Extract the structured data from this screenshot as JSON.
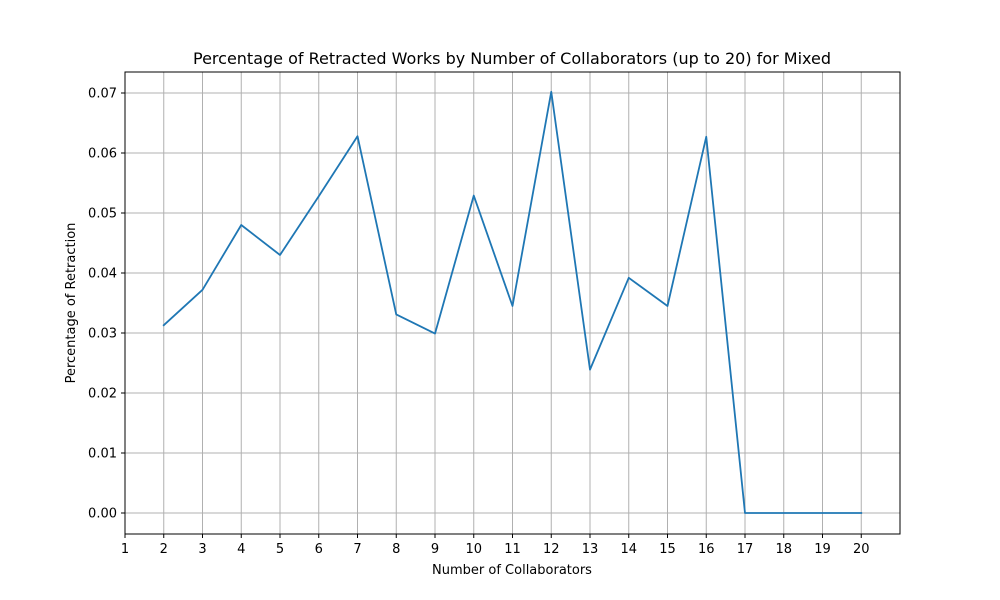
{
  "chart_data": {
    "type": "line",
    "title": "Percentage of Retracted Works by Number of Collaborators (up to 20) for Mixed",
    "xlabel": "Number of Collaborators",
    "ylabel": "Percentage of Retraction",
    "xlim": [
      1,
      21
    ],
    "ylim": [
      -0.0035,
      0.0735
    ],
    "xticks": [
      1,
      2,
      3,
      4,
      5,
      6,
      7,
      8,
      9,
      10,
      11,
      12,
      13,
      14,
      15,
      16,
      17,
      18,
      19,
      20
    ],
    "yticks": [
      0.0,
      0.01,
      0.02,
      0.03,
      0.04,
      0.05,
      0.06,
      0.07
    ],
    "ytick_labels": [
      "0.00",
      "0.01",
      "0.02",
      "0.03",
      "0.04",
      "0.05",
      "0.06",
      "0.07"
    ],
    "grid": true,
    "series": [
      {
        "color": "#1f77b4",
        "x": [
          2,
          3,
          4,
          5,
          6,
          7,
          8,
          9,
          10,
          11,
          12,
          13,
          14,
          15,
          16,
          17,
          18,
          19,
          20
        ],
        "y": [
          0.0313,
          0.0372,
          0.048,
          0.043,
          0.0528,
          0.0628,
          0.0331,
          0.0299,
          0.0529,
          0.0345,
          0.0702,
          0.0239,
          0.0392,
          0.0345,
          0.0627,
          0.0,
          0.0,
          0.0,
          0.0
        ]
      }
    ]
  }
}
